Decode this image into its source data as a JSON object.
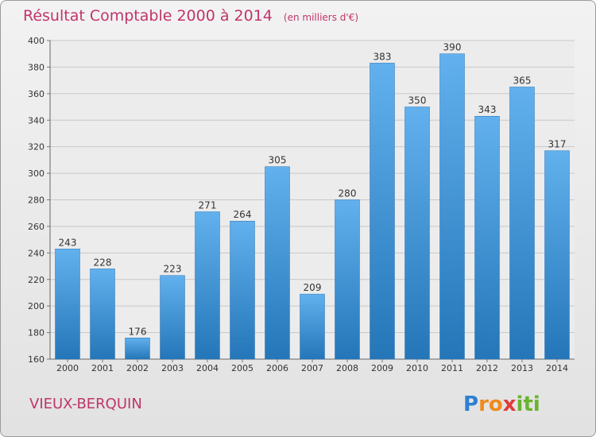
{
  "chart_data": {
    "type": "bar",
    "title": "Résultat Comptable 2000 à 2014",
    "subtitle": "(en milliers d'€)",
    "categories": [
      "2000",
      "2001",
      "2002",
      "2003",
      "2004",
      "2005",
      "2006",
      "2007",
      "2008",
      "2009",
      "2010",
      "2011",
      "2012",
      "2013",
      "2014"
    ],
    "values": [
      243,
      228,
      176,
      223,
      271,
      264,
      305,
      209,
      280,
      383,
      350,
      390,
      343,
      365,
      317
    ],
    "xlabel": "",
    "ylabel": "",
    "ylim": [
      160,
      400
    ],
    "yticks": [
      160,
      180,
      200,
      220,
      240,
      260,
      280,
      300,
      320,
      340,
      360,
      380,
      400
    ],
    "grid": true,
    "bar_color": "#3f97dd"
  },
  "location": "VIEUX-BERQUIN",
  "brand": {
    "letters": [
      "P",
      "r",
      "o",
      "x",
      "i",
      "t",
      "i"
    ],
    "colors": [
      "#2e7fd3",
      "#f08a1c",
      "#f08a1c",
      "#e03a3a",
      "#6ab42d",
      "#6ab42d",
      "#6ab42d"
    ]
  }
}
